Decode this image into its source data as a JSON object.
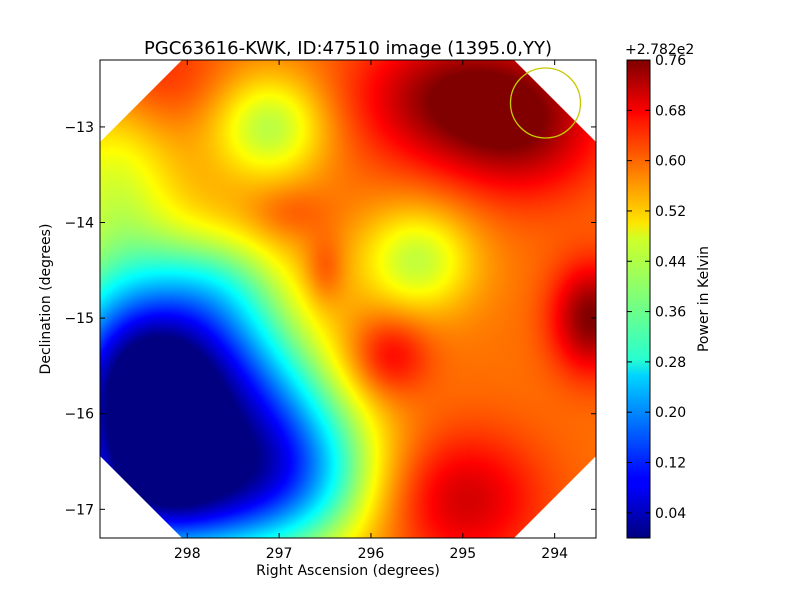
{
  "chart_data": {
    "type": "heatmap",
    "title": "PGC63616-KWK, ID:47510 image (1395.0,YY)",
    "xlabel": "Right Ascension (degrees)",
    "ylabel": "Declination (degrees)",
    "xlim": [
      298.95,
      293.55
    ],
    "ylim": [
      -17.3,
      -12.3
    ],
    "xticks": [
      298,
      297,
      296,
      295,
      294
    ],
    "yticks": [
      -13,
      -14,
      -15,
      -16,
      -17
    ],
    "colorbar": {
      "label": "Power in Kelvin",
      "offset_text": "+2.782e2",
      "range": [
        0.0,
        0.76
      ],
      "ticks": [
        "0.04",
        "0.12",
        "0.20",
        "0.28",
        "0.36",
        "0.44",
        "0.52",
        "0.60",
        "0.68",
        "0.76"
      ],
      "colormap": "jet"
    },
    "beam_marker": {
      "ra": 294.1,
      "dec": -12.75,
      "color": "#c8c800"
    },
    "surface": {
      "base": 0.58,
      "blobs": [
        {
          "ra": 298.35,
          "dec": -15.5,
          "dv": -0.52,
          "sra": 0.8,
          "sdec": 0.75
        },
        {
          "ra": 298.5,
          "dec": -16.4,
          "dv": -0.3,
          "sra": 0.6,
          "sdec": 0.7
        },
        {
          "ra": 298.0,
          "dec": -16.9,
          "dv": -0.28,
          "sra": 0.8,
          "sdec": 0.5
        },
        {
          "ra": 297.2,
          "dec": -16.2,
          "dv": -0.25,
          "sra": 0.6,
          "sdec": 0.8
        },
        {
          "ra": 296.6,
          "dec": -16.6,
          "dv": -0.18,
          "sra": 0.6,
          "sdec": 0.6
        },
        {
          "ra": 297.1,
          "dec": -13.0,
          "dv": -0.16,
          "sra": 0.45,
          "sdec": 0.4
        },
        {
          "ra": 298.8,
          "dec": -13.6,
          "dv": -0.12,
          "sra": 0.5,
          "sdec": 0.7
        },
        {
          "ra": 295.5,
          "dec": -14.4,
          "dv": -0.15,
          "sra": 0.45,
          "sdec": 0.4
        },
        {
          "ra": 297.6,
          "dec": -14.6,
          "dv": -0.08,
          "sra": 0.5,
          "sdec": 0.4
        },
        {
          "ra": 295.0,
          "dec": -12.7,
          "dv": 0.18,
          "sra": 0.8,
          "sdec": 0.5
        },
        {
          "ra": 294.3,
          "dec": -13.1,
          "dv": 0.1,
          "sra": 0.6,
          "sdec": 0.5
        },
        {
          "ra": 293.6,
          "dec": -15.0,
          "dv": 0.18,
          "sra": 0.3,
          "sdec": 0.4
        },
        {
          "ra": 295.0,
          "dec": -16.9,
          "dv": 0.12,
          "sra": 0.6,
          "sdec": 0.5
        },
        {
          "ra": 295.8,
          "dec": -15.4,
          "dv": 0.1,
          "sra": 0.3,
          "sdec": 0.3
        },
        {
          "ra": 296.5,
          "dec": -14.5,
          "dv": 0.06,
          "sra": 0.15,
          "sdec": 0.25
        },
        {
          "ra": 298.3,
          "dec": -12.5,
          "dv": 0.06,
          "sra": 0.5,
          "sdec": 0.4
        },
        {
          "ra": 296.9,
          "dec": -13.9,
          "dv": 0.04,
          "sra": 0.3,
          "sdec": 0.2
        }
      ]
    }
  }
}
